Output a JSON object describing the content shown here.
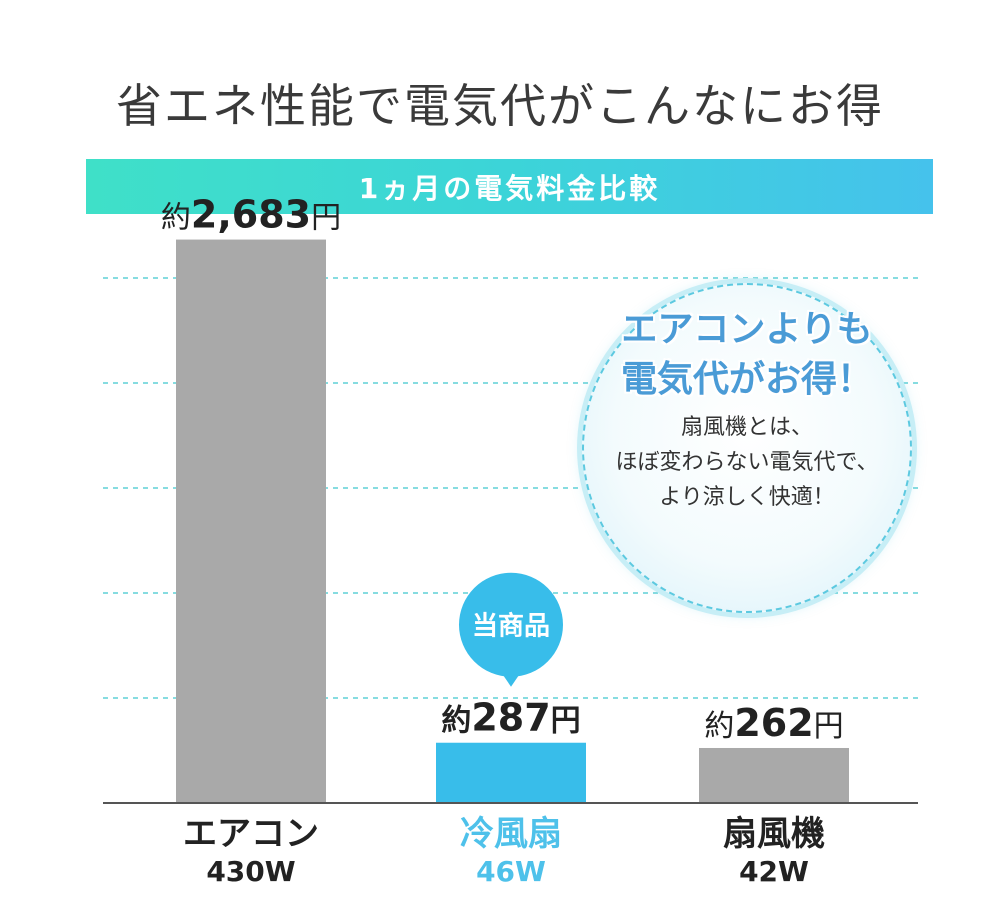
{
  "headline": "省エネ性能で電気代がこんなにお得",
  "banner": "1ヵ月の電気料金比較",
  "chart_data": {
    "type": "bar",
    "categories": [
      "エアコン",
      "冷風扇",
      "扇風機"
    ],
    "watts": [
      "430W",
      "46W",
      "42W"
    ],
    "values": [
      2683,
      287,
      262
    ],
    "value_labels": [
      {
        "prefix": "約",
        "amount": "2,683",
        "unit": "円"
      },
      {
        "prefix": "約",
        "amount": "287",
        "unit": "円"
      },
      {
        "prefix": "約",
        "amount": "262",
        "unit": "円"
      }
    ],
    "highlight_index": 1,
    "highlight_badge": "当商品",
    "ylim": [
      0,
      2800
    ],
    "gridlines": [
      500,
      1000,
      1500,
      2000,
      2500
    ],
    "grid": true,
    "colors": {
      "default": "#a9a9a9",
      "highlight": "#38bdea",
      "grid": "#5fd0d6",
      "baseline": "#555555"
    }
  },
  "callout": {
    "heading_line1": "エアコンよりも",
    "heading_line2": "電気代がお得！",
    "body_line1": "扇風機とは、",
    "body_line2": "ほぼ変わらない電気代で、",
    "body_line3": "より涼しく快適！"
  }
}
